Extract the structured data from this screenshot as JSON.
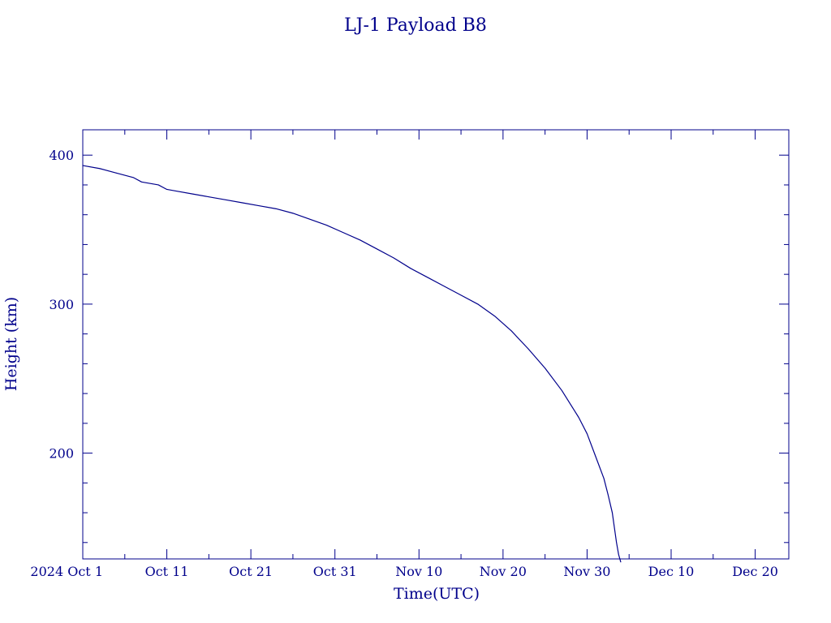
{
  "chart_data": {
    "type": "line",
    "title": "LJ-1 Payload B8",
    "xlabel": "Time(UTC)",
    "ylabel": "Height (km)",
    "x_axis": {
      "scale": "date",
      "range": [
        "2024-10-01",
        "2024-12-24"
      ],
      "major_tick_labels": [
        {
          "date": "2024-10-01",
          "label": "2024 Oct  1"
        },
        {
          "date": "2024-10-11",
          "label": "Oct 11"
        },
        {
          "date": "2024-10-21",
          "label": "Oct 21"
        },
        {
          "date": "2024-10-31",
          "label": "Oct 31"
        },
        {
          "date": "2024-11-10",
          "label": "Nov 10"
        },
        {
          "date": "2024-11-20",
          "label": "Nov 20"
        },
        {
          "date": "2024-11-30",
          "label": "Nov 30"
        },
        {
          "date": "2024-12-10",
          "label": "Dec 10"
        },
        {
          "date": "2024-12-20",
          "label": "Dec 20"
        }
      ],
      "minor_tick_step_days": 5
    },
    "y_axis": {
      "range": [
        129,
        417
      ],
      "major_ticks": [
        200,
        300,
        400
      ],
      "minor_tick_step": 20
    },
    "grid": false,
    "legend": "none",
    "series": [
      {
        "color": "#00008b",
        "x": [
          "2024-10-01",
          "2024-10-03",
          "2024-10-05",
          "2024-10-07",
          "2024-10-08",
          "2024-10-10",
          "2024-10-11",
          "2024-10-12",
          "2024-10-14",
          "2024-10-16",
          "2024-10-18",
          "2024-10-20",
          "2024-10-22",
          "2024-10-24",
          "2024-10-26",
          "2024-10-28",
          "2024-10-30",
          "2024-11-01",
          "2024-11-03",
          "2024-11-05",
          "2024-11-07",
          "2024-11-09",
          "2024-11-11",
          "2024-11-13",
          "2024-11-15",
          "2024-11-17",
          "2024-11-19",
          "2024-11-21",
          "2024-11-23",
          "2024-11-25",
          "2024-11-27",
          "2024-11-29",
          "2024-11-30",
          "2024-12-01",
          "2024-12-02",
          "2024-12-02 12:00",
          "2024-12-03",
          "2024-12-03 06:00",
          "2024-12-03 12:00",
          "2024-12-03 18:00",
          "2024-12-04"
        ],
        "y": [
          393,
          391,
          388,
          385,
          382,
          380,
          377,
          376,
          374,
          372,
          370,
          368,
          366,
          364,
          361,
          357,
          353,
          348,
          343,
          337,
          331,
          324,
          318,
          312,
          306,
          300,
          292,
          282,
          270,
          257,
          242,
          224,
          213,
          198,
          183,
          172,
          160,
          150,
          140,
          132,
          127
        ]
      }
    ]
  }
}
